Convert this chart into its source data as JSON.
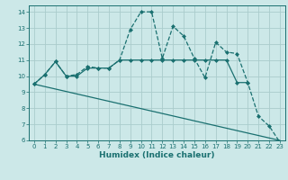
{
  "title": "",
  "xlabel": "Humidex (Indice chaleur)",
  "xlim": [
    -0.5,
    23.5
  ],
  "ylim": [
    6,
    14.4
  ],
  "xticks": [
    0,
    1,
    2,
    3,
    4,
    5,
    6,
    7,
    8,
    9,
    10,
    11,
    12,
    13,
    14,
    15,
    16,
    17,
    18,
    19,
    20,
    21,
    22,
    23
  ],
  "yticks": [
    6,
    7,
    8,
    9,
    10,
    11,
    12,
    13,
    14
  ],
  "background_color": "#cce8e8",
  "grid_color": "#aacccc",
  "line_color": "#1a7070",
  "lines": [
    {
      "x": [
        0,
        1,
        2,
        3,
        4,
        5,
        6,
        7,
        8,
        9,
        10,
        11,
        12,
        13,
        14,
        15,
        16,
        17,
        18,
        19,
        20
      ],
      "y": [
        9.5,
        10.1,
        10.9,
        10.0,
        10.0,
        10.5,
        10.5,
        10.5,
        11.0,
        11.0,
        11.0,
        11.0,
        11.0,
        11.0,
        11.0,
        11.0,
        11.0,
        11.0,
        11.0,
        9.6,
        9.6
      ],
      "marker": "D",
      "markersize": 2.0,
      "linewidth": 0.9,
      "linestyle": "-"
    },
    {
      "x": [
        0,
        1,
        2,
        3,
        4,
        5,
        6,
        7,
        8,
        9,
        10,
        11,
        12,
        13,
        14,
        15,
        16,
        17,
        18,
        19,
        20,
        21,
        22,
        23
      ],
      "y": [
        9.5,
        10.1,
        10.9,
        10.0,
        10.1,
        10.6,
        10.5,
        10.5,
        11.0,
        12.9,
        14.0,
        14.0,
        11.1,
        13.1,
        12.5,
        11.1,
        9.9,
        12.1,
        11.5,
        11.4,
        9.6,
        7.5,
        6.9,
        5.9
      ],
      "marker": "D",
      "markersize": 2.0,
      "linewidth": 0.9,
      "linestyle": "--"
    },
    {
      "x": [
        0,
        23
      ],
      "y": [
        9.5,
        6.0
      ],
      "marker": null,
      "markersize": 0,
      "linewidth": 0.9,
      "linestyle": "-"
    }
  ]
}
